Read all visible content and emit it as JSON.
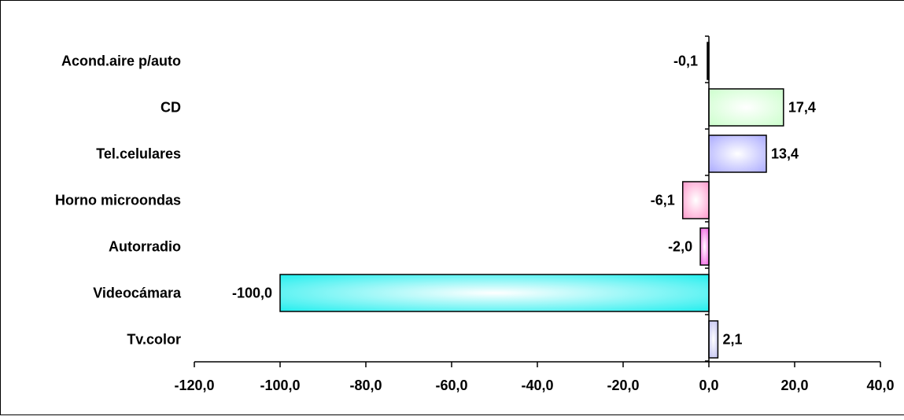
{
  "chart_data": {
    "type": "bar",
    "orientation": "horizontal",
    "categories": [
      "Acond.aire p/auto",
      "CD",
      "Tel.celulares",
      "Horno microondas",
      "Autorradio",
      "Videocámara",
      "Tv.color"
    ],
    "values": [
      -0.1,
      17.4,
      13.4,
      -6.1,
      -2.0,
      -100.0,
      2.1
    ],
    "value_labels": [
      "-0,1",
      "17,4",
      "13,4",
      "-6,1",
      "-2,0",
      "-100,0",
      "2,1"
    ],
    "bar_colors": [
      "#000000",
      "#ccffcc",
      "#aaaaff",
      "#ff99cc",
      "#ee55dd",
      "#22eeee",
      "#bbbbee"
    ],
    "xlim": [
      -120,
      40
    ],
    "x_ticks": [
      -120,
      -100,
      -80,
      -60,
      -40,
      -20,
      0,
      20,
      40
    ],
    "x_tick_labels": [
      "-120,0",
      "-100,0",
      "-80,0",
      "-60,0",
      "-40,0",
      "-20,0",
      "0,0",
      "20,0",
      "40,0"
    ],
    "grid": false,
    "legend": "none",
    "title": "",
    "xlabel": "",
    "ylabel": ""
  }
}
